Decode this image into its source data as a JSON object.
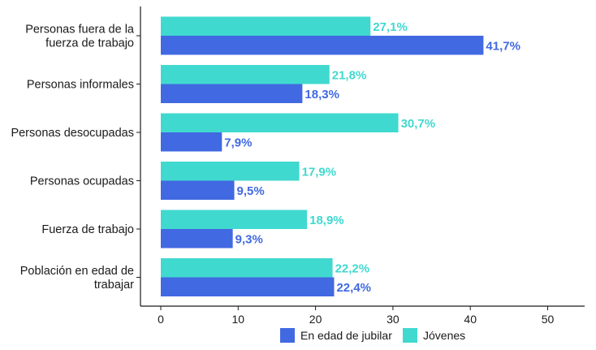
{
  "chart_data": {
    "type": "bar",
    "orientation": "horizontal",
    "categories": [
      "Personas fuera de la fuerza de trabajo",
      "Personas informales",
      "Personas desocupadas",
      "Personas ocupadas",
      "Fuerza de trabajo",
      "Población en edad de trabajar"
    ],
    "category_lines": [
      [
        "Personas fuera de la",
        "fuerza de trabajo"
      ],
      [
        "Personas informales"
      ],
      [
        "Personas desocupadas"
      ],
      [
        "Personas ocupadas"
      ],
      [
        "Fuerza de trabajo"
      ],
      [
        "Población en edad de",
        "trabajar"
      ]
    ],
    "series": [
      {
        "name": "Jóvenes",
        "color": "#40d9cf",
        "values": [
          27.1,
          21.8,
          30.7,
          17.9,
          18.9,
          22.2
        ],
        "labels": [
          "27,1%",
          "21,8%",
          "30,7%",
          "17,9%",
          "18,9%",
          "22,2%"
        ]
      },
      {
        "name": "En edad de jubilar",
        "color": "#4169e1",
        "values": [
          41.7,
          18.3,
          7.9,
          9.5,
          9.3,
          22.4
        ],
        "labels": [
          "41,7%",
          "18,3%",
          "7,9%",
          "9,5%",
          "9,3%",
          "22,4%"
        ]
      }
    ],
    "xlim": [
      0,
      50
    ],
    "xticks": [
      0,
      10,
      20,
      30,
      40,
      50
    ],
    "xtick_labels": [
      "0",
      "10",
      "20",
      "30",
      "40",
      "50"
    ],
    "xlabel": "",
    "ylabel": "",
    "grid": false,
    "legend": {
      "position": "bottom",
      "entries": [
        "En edad de jubilar",
        "Jóvenes"
      ]
    }
  }
}
